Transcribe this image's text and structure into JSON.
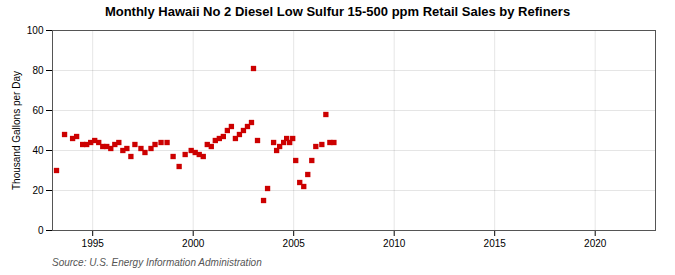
{
  "chart_data": {
    "type": "scatter",
    "title": "Monthly Hawaii No 2 Diesel Low Sulfur 15-500 ppm Retail Sales by Refiners",
    "ylabel": "Thousand Gallons per Day",
    "annotation": "Source: U.S. Energy Information Administration",
    "x": [
      1993.2,
      1993.6,
      1994.0,
      1994.2,
      1994.5,
      1994.7,
      1994.9,
      1995.1,
      1995.3,
      1995.5,
      1995.7,
      1995.9,
      1996.1,
      1996.3,
      1996.5,
      1996.7,
      1996.9,
      1997.1,
      1997.4,
      1997.6,
      1997.9,
      1998.1,
      1998.4,
      1998.7,
      1999.0,
      1999.3,
      1999.6,
      1999.9,
      2000.1,
      2000.3,
      2000.5,
      2000.7,
      2000.9,
      2001.1,
      2001.3,
      2001.5,
      2001.7,
      2001.9,
      2002.1,
      2002.3,
      2002.5,
      2002.7,
      2002.9,
      2003.0,
      2003.2,
      2003.5,
      2003.7,
      2004.0,
      2004.15,
      2004.3,
      2004.5,
      2004.65,
      2004.8,
      2004.95,
      2005.1,
      2005.3,
      2005.5,
      2005.7,
      2005.9,
      2006.1,
      2006.4,
      2006.6,
      2006.8,
      2007.0
    ],
    "values": [
      30,
      48,
      46,
      47,
      43,
      43,
      44,
      45,
      44,
      42,
      42,
      41,
      43,
      44,
      40,
      41,
      37,
      43,
      41,
      39,
      41,
      43,
      44,
      44,
      37,
      32,
      38,
      40,
      39,
      38,
      37,
      43,
      42,
      45,
      46,
      47,
      50,
      52,
      46,
      48,
      50,
      52,
      54,
      81,
      45,
      15,
      21,
      44,
      40,
      42,
      44,
      46,
      44,
      46,
      35,
      24,
      22,
      28,
      35,
      42,
      43,
      58,
      44,
      44
    ],
    "color": "#cc0000",
    "marker": "square",
    "xlim": [
      1993.0,
      2023.0
    ],
    "ylim": [
      0,
      100
    ],
    "xticks": [
      1995,
      2000,
      2005,
      2010,
      2015,
      2020
    ],
    "yticks": [
      0,
      20,
      40,
      60,
      80,
      100
    ],
    "grid": true
  }
}
